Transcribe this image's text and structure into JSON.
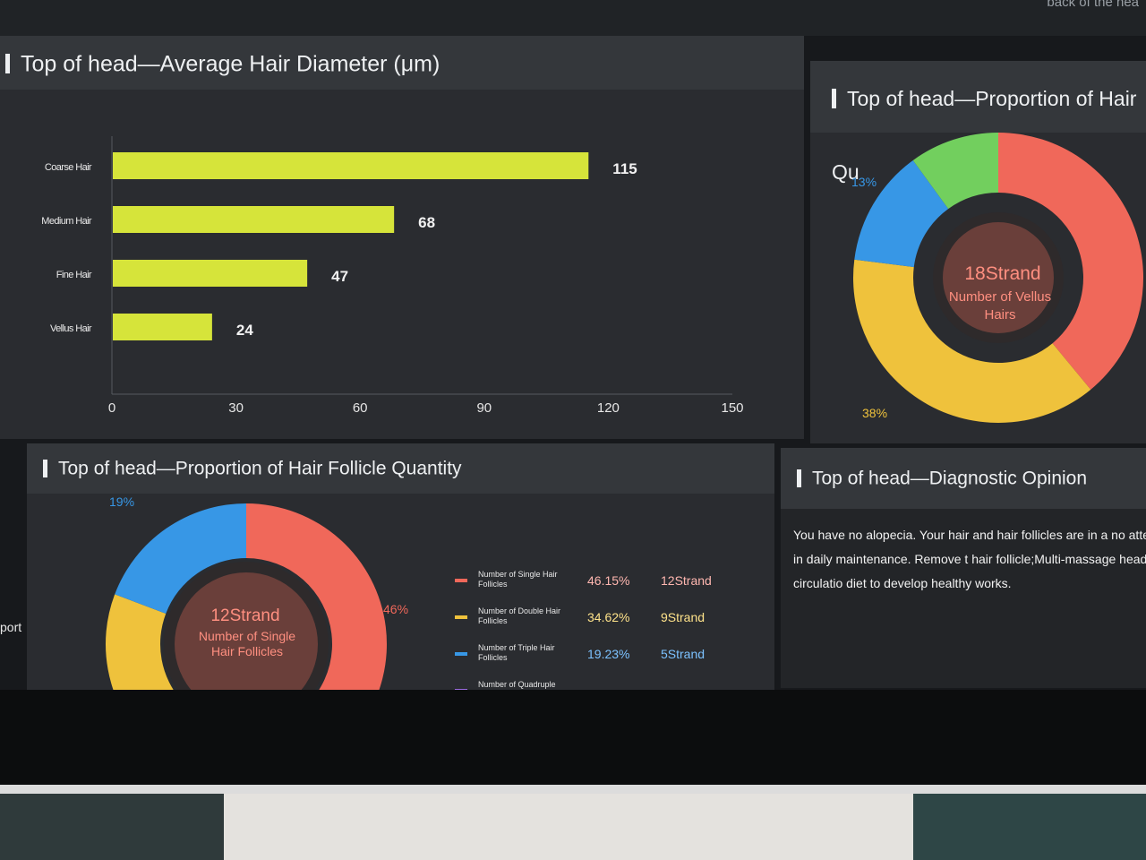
{
  "top_hint": "back of the hea",
  "left_edge_label": "port",
  "panels": {
    "diameter": {
      "title": "Top of head—Average Hair Diameter (μm)",
      "chart_data": {
        "type": "bar",
        "orientation": "horizontal",
        "title": "Top of head—Average Hair Diameter (μm)",
        "categories": [
          "Coarse Hair",
          "Medium Hair",
          "Fine Hair",
          "Vellus Hair"
        ],
        "values": [
          115,
          68,
          47,
          24
        ],
        "xlim": [
          0,
          150
        ],
        "xticks": [
          0,
          30,
          60,
          90,
          120,
          150
        ],
        "color": "#d6e43a"
      }
    },
    "quality": {
      "title": "Top of head—Proportion of Hair Qu",
      "center_value": "18Strand",
      "center_caption": "Number of Vellus Hairs",
      "chart_data": {
        "type": "pie",
        "donut": true,
        "slices": [
          {
            "name": "red",
            "percent": 39,
            "color": "#f0685a"
          },
          {
            "name": "yellow",
            "percent": 38,
            "color": "#efc23c",
            "label": "38%"
          },
          {
            "name": "blue",
            "percent": 13,
            "color": "#3797e6",
            "label": "13%"
          },
          {
            "name": "green",
            "percent": 10,
            "color": "#72cf5e"
          }
        ]
      }
    },
    "follicle": {
      "title": "Top of head—Proportion of Hair Follicle Quantity",
      "center_value": "12Strand",
      "center_caption": "Number of Single Hair Follicles",
      "chart_data": {
        "type": "pie",
        "donut": true,
        "slices": [
          {
            "name": "Number of Single Hair Follicles",
            "percent": 46.15,
            "count": "12Strand",
            "color": "#f0685a",
            "label": "46%"
          },
          {
            "name": "Number of Double Hair Follicles",
            "percent": 34.62,
            "count": "9Strand",
            "color": "#efc23c"
          },
          {
            "name": "Number of Triple Hair Follicles",
            "percent": 19.23,
            "count": "5Strand",
            "color": "#3797e6",
            "label": "19%"
          }
        ]
      },
      "legend": [
        {
          "label": "Number of Single Hair Follicles",
          "percent": "46.15%",
          "count": "12Strand",
          "color": "#f0685a",
          "text_color": "#ffb7b0"
        },
        {
          "label": "Number of Double Hair Follicles",
          "percent": "34.62%",
          "count": "9Strand",
          "color": "#efc23c",
          "text_color": "#ffe38a"
        },
        {
          "label": "Number of Triple Hair Follicles",
          "percent": "19.23%",
          "count": "5Strand",
          "color": "#3797e6",
          "text_color": "#7cc2ff"
        },
        {
          "label": "Number of Quadruple",
          "percent": "",
          "count": "",
          "color": "#9c6ce0",
          "text_color": "#d9c6ff"
        }
      ]
    },
    "diagnosis": {
      "title": "Top of head—Diagnostic Opinion",
      "text": "You have no alopecia. Your hair and hair follicles are in a no attention to regular cleaning in daily maintenance. Remove t hair follicle;Multi-massage head, promote the blood circulatio diet to develop healthy works."
    }
  }
}
